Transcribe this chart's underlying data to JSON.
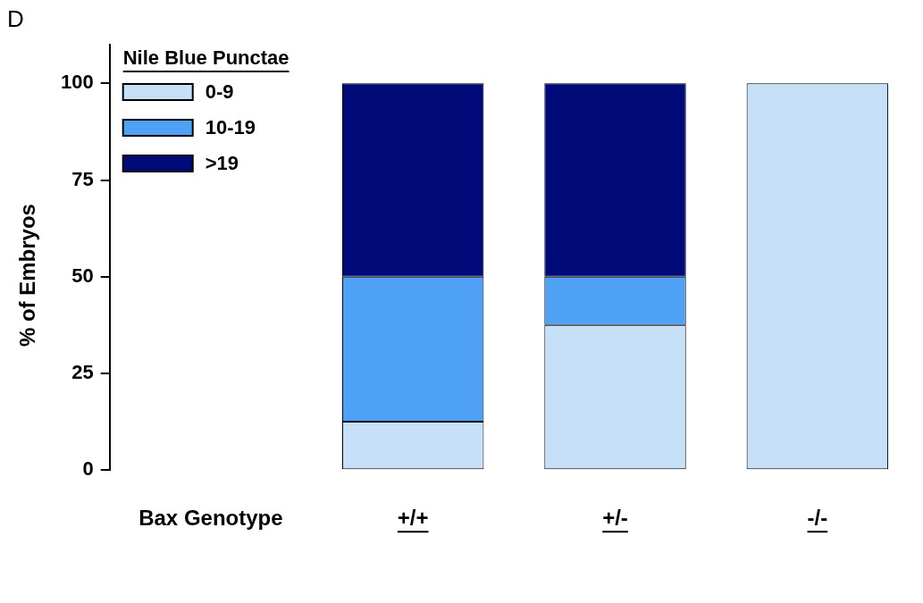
{
  "chart_data": {
    "type": "bar",
    "title": "D",
    "xlabel": "Bax Genotype",
    "ylabel": "% of Embryos",
    "legend_title": "Nile Blue Punctae",
    "legend": "top left",
    "stacked": true,
    "grid": false,
    "categories": [
      null,
      "+/+",
      "+/-",
      "-/-"
    ],
    "ylim": [
      0,
      110
    ],
    "yticks": [
      0,
      25,
      50,
      75,
      100
    ],
    "series": [
      {
        "name": "0-9",
        "color": "#c6e0f8",
        "values": [
          null,
          12.5,
          37.5,
          100
        ]
      },
      {
        "name": "10-19",
        "color": "#4ea1f4",
        "values": [
          null,
          37.5,
          12.5,
          0
        ]
      },
      {
        "name": ">19",
        "color": "#000a78",
        "values": [
          null,
          50,
          50,
          0
        ]
      }
    ]
  }
}
